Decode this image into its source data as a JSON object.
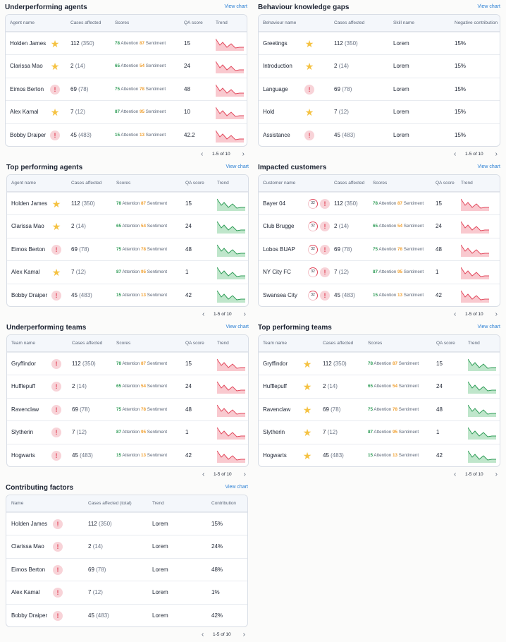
{
  "colors": {
    "accent": "#2a7fd4",
    "good": "#2f9c57",
    "warn": "#f0a030",
    "bad": "#e2485c",
    "star": "#f5c242"
  },
  "view_chart": "View chart",
  "pager": {
    "prev": "‹",
    "next": "›"
  },
  "underperforming_agents": {
    "title": "Underperforming agents",
    "columns": [
      "Agent name",
      "Cases affected",
      "Scores",
      "QA score",
      "Trend"
    ],
    "pagination": "1-5 of 10",
    "rows": [
      {
        "name": "Holden James",
        "icon": "star-icon",
        "cases": "112",
        "total": "(350)",
        "attention": "78",
        "sentiment": "87",
        "qa": "15",
        "trend": "down-red"
      },
      {
        "name": "Clarissa Mao",
        "icon": "star-icon",
        "cases": "2",
        "total": "(14)",
        "attention": "65",
        "sentiment": "54",
        "qa": "24",
        "trend": "down-red"
      },
      {
        "name": "Eimos Berton",
        "icon": "alert-icon",
        "cases": "69",
        "total": "(78)",
        "attention": "75",
        "sentiment": "78",
        "qa": "48",
        "trend": "down-red"
      },
      {
        "name": "Alex Kamal",
        "icon": "star-icon",
        "cases": "7",
        "total": "(12)",
        "attention": "87",
        "sentiment": "95",
        "qa": "10",
        "trend": "down-red"
      },
      {
        "name": "Bobby Draiper",
        "icon": "alert-icon",
        "cases": "45",
        "total": "(483)",
        "attention": "15",
        "sentiment": "13",
        "qa": "42.2",
        "trend": "down-red"
      }
    ]
  },
  "behaviour_gaps": {
    "title": "Behaviour knowledge gaps",
    "columns": [
      "Behaviour name",
      "Cases affected",
      "Skill name",
      "Negative contribution"
    ],
    "pagination": "1-5 of 10",
    "rows": [
      {
        "name": "Greetings",
        "icon": "star-icon",
        "cases": "112",
        "total": "(350)",
        "skill": "Lorem",
        "neg": "15%"
      },
      {
        "name": "Introduction",
        "icon": "star-icon",
        "cases": "2",
        "total": "(14)",
        "skill": "Lorem",
        "neg": "15%"
      },
      {
        "name": "Language",
        "icon": "alert-icon",
        "cases": "69",
        "total": "(78)",
        "skill": "Lorem",
        "neg": "15%"
      },
      {
        "name": "Hold",
        "icon": "star-icon",
        "cases": "7",
        "total": "(12)",
        "skill": "Lorem",
        "neg": "15%"
      },
      {
        "name": "Assistance",
        "icon": "alert-icon",
        "cases": "45",
        "total": "(483)",
        "skill": "Lorem",
        "neg": "15%"
      }
    ]
  },
  "top_agents": {
    "title": "Top performing agents",
    "columns": [
      "Agent name",
      "Cases affected",
      "Scores",
      "QA score",
      "Trend"
    ],
    "pagination": "1-5 of 10",
    "rows": [
      {
        "name": "Holden James",
        "icon": "star-icon",
        "cases": "112",
        "total": "(350)",
        "attention": "78",
        "sentiment": "87",
        "qa": "15",
        "trend": "down-green"
      },
      {
        "name": "Clarissa Mao",
        "icon": "star-icon",
        "cases": "2",
        "total": "(14)",
        "attention": "65",
        "sentiment": "54",
        "qa": "24",
        "trend": "down-green"
      },
      {
        "name": "Eimos Berton",
        "icon": "alert-icon",
        "cases": "69",
        "total": "(78)",
        "attention": "75",
        "sentiment": "78",
        "qa": "48",
        "trend": "down-green"
      },
      {
        "name": "Alex Kamal",
        "icon": "star-icon",
        "cases": "7",
        "total": "(12)",
        "attention": "87",
        "sentiment": "95",
        "qa": "1",
        "trend": "down-green"
      },
      {
        "name": "Bobby Draiper",
        "icon": "alert-icon",
        "cases": "45",
        "total": "(483)",
        "attention": "15",
        "sentiment": "13",
        "qa": "42",
        "trend": "down-green"
      }
    ]
  },
  "impacted_customers": {
    "title": "Impacted customers",
    "columns": [
      "Customer name",
      "Cases affected",
      "Scores",
      "QA score",
      "Trend"
    ],
    "pagination": "1-5 of 10",
    "rows": [
      {
        "name": "Bayer 04",
        "ring": "32",
        "cases": "112",
        "total": "(350)",
        "attention": "78",
        "sentiment": "87",
        "qa": "15"
      },
      {
        "name": "Club Brugge",
        "ring": "32",
        "cases": "2",
        "total": "(14)",
        "attention": "65",
        "sentiment": "54",
        "qa": "24"
      },
      {
        "name": "Lobos BUAP",
        "ring": "32",
        "cases": "69",
        "total": "(78)",
        "attention": "75",
        "sentiment": "78",
        "qa": "48"
      },
      {
        "name": "NY City FC",
        "ring": "32",
        "cases": "7",
        "total": "(12)",
        "attention": "87",
        "sentiment": "95",
        "qa": "1"
      },
      {
        "name": "Swansea City",
        "ring": "32",
        "cases": "45",
        "total": "(483)",
        "attention": "15",
        "sentiment": "13",
        "qa": "42"
      }
    ]
  },
  "underperforming_teams": {
    "title": "Underperforming teams",
    "columns": [
      "Team name",
      "Cases affected",
      "Scores",
      "QA score",
      "Trend"
    ],
    "pagination": "1-5 of 10",
    "rows": [
      {
        "name": "Gryffindor",
        "icon": "alert-icon",
        "cases": "112",
        "total": "(350)",
        "attention": "78",
        "sentiment": "87",
        "qa": "15"
      },
      {
        "name": "Hufflepuff",
        "icon": "alert-icon",
        "cases": "2",
        "total": "(14)",
        "attention": "65",
        "sentiment": "54",
        "qa": "24"
      },
      {
        "name": "Ravenclaw",
        "icon": "alert-icon",
        "cases": "69",
        "total": "(78)",
        "attention": "75",
        "sentiment": "78",
        "qa": "48"
      },
      {
        "name": "Slytherin",
        "icon": "alert-icon",
        "cases": "7",
        "total": "(12)",
        "attention": "87",
        "sentiment": "95",
        "qa": "1"
      },
      {
        "name": "Hogwarts",
        "icon": "alert-icon",
        "cases": "45",
        "total": "(483)",
        "attention": "15",
        "sentiment": "13",
        "qa": "42"
      }
    ]
  },
  "top_teams": {
    "title": "Top performing teams",
    "columns": [
      "Team name",
      "Cases affected",
      "Scores",
      "QA score",
      "Trend"
    ],
    "pagination": "1-5 of 10",
    "rows": [
      {
        "name": "Gryffindor",
        "icon": "star-icon",
        "cases": "112",
        "total": "(350)",
        "attention": "78",
        "sentiment": "87",
        "qa": "15"
      },
      {
        "name": "Hufflepuff",
        "icon": "star-icon",
        "cases": "2",
        "total": "(14)",
        "attention": "65",
        "sentiment": "54",
        "qa": "24"
      },
      {
        "name": "Ravenclaw",
        "icon": "star-icon",
        "cases": "69",
        "total": "(78)",
        "attention": "75",
        "sentiment": "78",
        "qa": "48"
      },
      {
        "name": "Slytherin",
        "icon": "star-icon",
        "cases": "7",
        "total": "(12)",
        "attention": "87",
        "sentiment": "95",
        "qa": "1"
      },
      {
        "name": "Hogwarts",
        "icon": "star-icon",
        "cases": "45",
        "total": "(483)",
        "attention": "15",
        "sentiment": "13",
        "qa": "42"
      }
    ]
  },
  "contributing_factors": {
    "title": "Contributing factors",
    "columns": [
      "Name",
      "Cases affected (total)",
      "Trend",
      "Contribution"
    ],
    "pagination": "1-5 of 10",
    "rows": [
      {
        "name": "Holden James",
        "icon": "alert-icon",
        "cases": "112",
        "total": "(350)",
        "trend": "Lorem",
        "contribution": "15%"
      },
      {
        "name": "Clarissa Mao",
        "icon": "alert-icon",
        "cases": "2",
        "total": "(14)",
        "trend": "Lorem",
        "contribution": "24%"
      },
      {
        "name": "Eimos Berton",
        "icon": "alert-icon",
        "cases": "69",
        "total": "(78)",
        "trend": "Lorem",
        "contribution": "48%"
      },
      {
        "name": "Alex Kamal",
        "icon": "alert-icon",
        "cases": "7",
        "total": "(12)",
        "trend": "Lorem",
        "contribution": "1%"
      },
      {
        "name": "Bobby Draiper",
        "icon": "alert-icon",
        "cases": "45",
        "total": "(483)",
        "trend": "Lorem",
        "contribution": "42%"
      }
    ]
  },
  "labels": {
    "attention": "Attention",
    "sentiment": "Sentiment",
    "alert_glyph": "!",
    "star_glyph": "★"
  }
}
